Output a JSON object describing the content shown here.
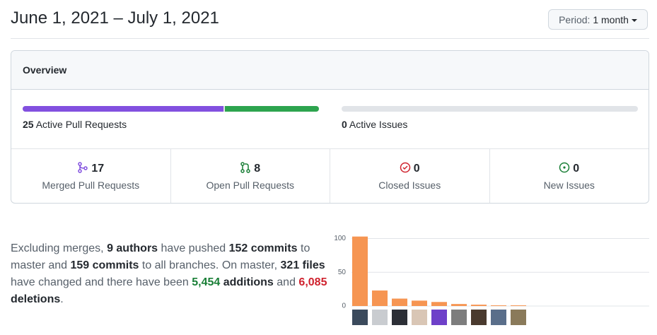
{
  "header": {
    "title": "June 1, 2021 – July 1, 2021",
    "period_label": "Period:",
    "period_value": "1 month"
  },
  "overview": {
    "title": "Overview",
    "pull_requests": {
      "count": 25,
      "label": "Active Pull Requests"
    },
    "issues": {
      "count": 0,
      "label": "Active Issues"
    },
    "stats": [
      {
        "count": 17,
        "label": "Merged Pull Requests",
        "icon": "merged",
        "color": "#8250df"
      },
      {
        "count": 8,
        "label": "Open Pull Requests",
        "icon": "open-pr",
        "color": "#1a7f37"
      },
      {
        "count": 0,
        "label": "Closed Issues",
        "icon": "closed-issue",
        "color": "#cf222e"
      },
      {
        "count": 0,
        "label": "New Issues",
        "icon": "new-issue",
        "color": "#1a7f37"
      }
    ]
  },
  "summary": [
    {
      "text": "Excluding merges, "
    },
    {
      "text": "9 authors",
      "style": "strong"
    },
    {
      "text": " have pushed "
    },
    {
      "text": "152 commits",
      "style": "strong"
    },
    {
      "text": " to master and "
    },
    {
      "text": "159 commits",
      "style": "strong"
    },
    {
      "text": " to all branches. On master, "
    },
    {
      "text": "321 files",
      "style": "strong"
    },
    {
      "text": " have changed and there have been "
    },
    {
      "text": "5,454",
      "style": "green"
    },
    {
      "text": " "
    },
    {
      "text": "additions",
      "style": "strong"
    },
    {
      "text": " and "
    },
    {
      "text": "6,085",
      "style": "red"
    },
    {
      "text": " "
    },
    {
      "text": "deletions",
      "style": "strong"
    },
    {
      "text": "."
    }
  ],
  "chart_data": {
    "type": "bar",
    "categories": [
      null,
      null,
      null,
      null,
      null,
      null,
      null,
      null,
      null
    ],
    "values": [
      103,
      23,
      11,
      8,
      6,
      3,
      2,
      1,
      1
    ],
    "color": "#f69552",
    "ylim": [
      0,
      110
    ],
    "yticks": [
      0,
      50,
      100
    ],
    "grid": true
  }
}
